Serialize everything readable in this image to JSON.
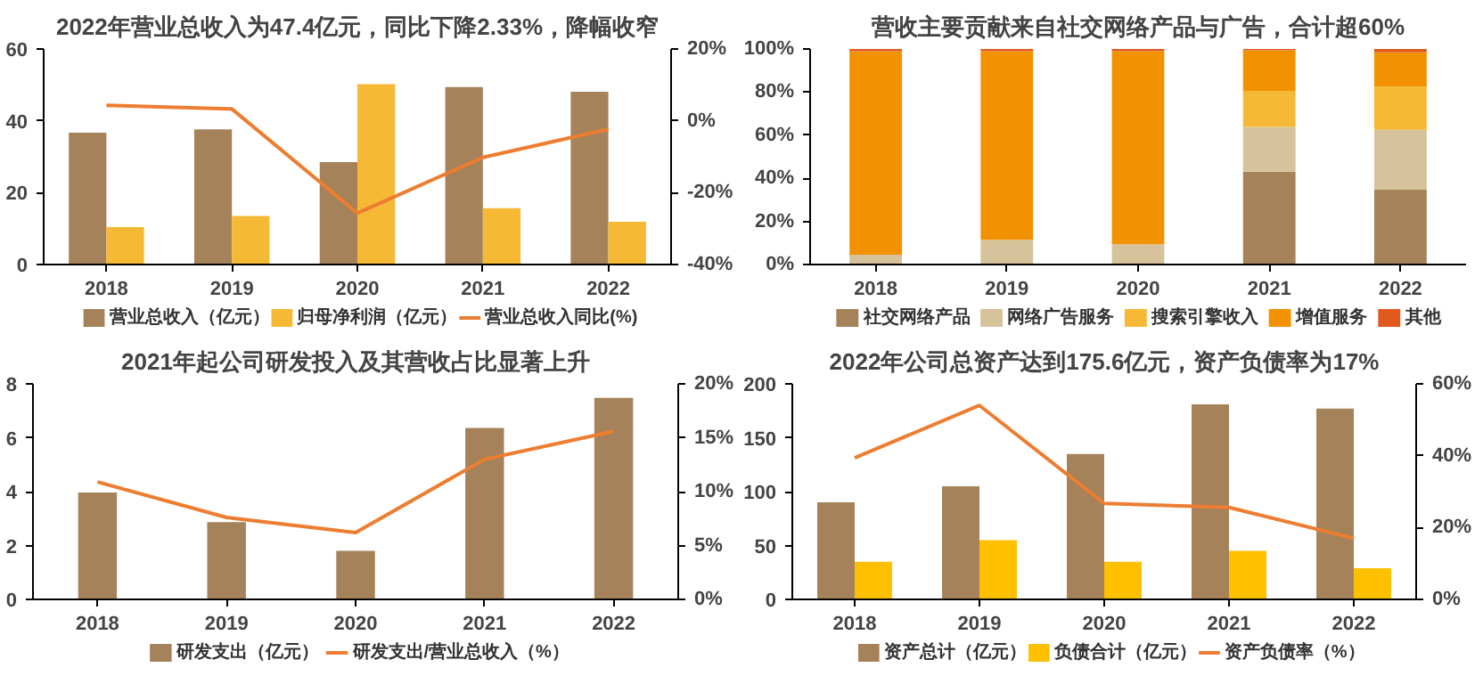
{
  "chart_data": [
    {
      "type": "bar",
      "title": "2022年营业总收入为47.4亿元，同比下降2.33%，降幅收窄",
      "categories": [
        "2018",
        "2019",
        "2020",
        "2021",
        "2022"
      ],
      "series": [
        {
          "name": "营业总收入（亿元）",
          "color": "#a5825a",
          "values": [
            36.7,
            37.6,
            28.5,
            49.4,
            48.1
          ]
        },
        {
          "name": "归母净利润（亿元）",
          "color": "#f5b935",
          "values": [
            10.4,
            13.5,
            50.2,
            15.7,
            11.9
          ]
        },
        {
          "name": "营业总收入同比(%)",
          "color": "#ed7d31",
          "type": "line",
          "axis": "y2",
          "values": [
            4.3,
            3.3,
            -25.7,
            -10.2,
            -2.3
          ]
        }
      ],
      "ylim": [
        0,
        60
      ],
      "yticks": [
        0,
        20,
        40,
        60
      ],
      "y2lim": [
        -40,
        20
      ],
      "y2ticks": [
        {
          "value": -40,
          "label": "-40%"
        },
        {
          "value": -20,
          "label": "-20%"
        },
        {
          "value": 0,
          "label": "0%"
        },
        {
          "value": 20,
          "label": "20%"
        }
      ],
      "legend": "bottom",
      "grid": false,
      "marker": "none",
      "line_style": "solid"
    },
    {
      "type": "bar",
      "title": "营收主要贡献来自社交网络产品与广告，合计超60%",
      "categories": [
        "2018",
        "2019",
        "2020",
        "2021",
        "2022"
      ],
      "stacked": true,
      "series": [
        {
          "name": "社交网络产品",
          "color": "#a5825a",
          "values": [
            0,
            0,
            0,
            43.1,
            34.7
          ]
        },
        {
          "name": "网络广告服务",
          "color": "#d6c39c",
          "values": [
            4.5,
            11.5,
            9.4,
            20.7,
            27.8
          ]
        },
        {
          "name": "搜索引擎收入",
          "color": "#f5b935",
          "values": [
            0,
            0,
            0,
            16.8,
            20.0
          ]
        },
        {
          "name": "增值服务",
          "color": "#f39200",
          "values": [
            94.5,
            87.5,
            89.6,
            18.8,
            15.9
          ]
        },
        {
          "name": "其他",
          "color": "#e05a1e",
          "values": [
            1,
            1,
            1,
            0.6,
            1.6
          ]
        }
      ],
      "ylim": [
        0,
        100
      ],
      "yticks": [
        {
          "value": 0,
          "label": "0%"
        },
        {
          "value": 20,
          "label": "20%"
        },
        {
          "value": 40,
          "label": "40%"
        },
        {
          "value": 60,
          "label": "60%"
        },
        {
          "value": 80,
          "label": "80%"
        },
        {
          "value": 100,
          "label": "100%"
        }
      ],
      "legend": "bottom",
      "grid": false
    },
    {
      "type": "bar",
      "title": "2021年起公司研发投入及其营收占比显著上升",
      "categories": [
        "2018",
        "2019",
        "2020",
        "2021",
        "2022"
      ],
      "series": [
        {
          "name": "研发支出（亿元）",
          "color": "#a5825a",
          "values": [
            3.97,
            2.87,
            1.8,
            6.36,
            7.48
          ]
        },
        {
          "name": "研发支出/营业总收入（%）",
          "color": "#ed7d31",
          "type": "line",
          "axis": "y2",
          "values": [
            10.9,
            7.6,
            6.2,
            13.0,
            15.6
          ]
        }
      ],
      "ylim": [
        0,
        8
      ],
      "yticks": [
        0,
        2,
        4,
        6,
        8
      ],
      "y2lim": [
        0,
        20
      ],
      "y2ticks": [
        {
          "value": 0,
          "label": "0%"
        },
        {
          "value": 5,
          "label": "5%"
        },
        {
          "value": 10,
          "label": "10%"
        },
        {
          "value": 15,
          "label": "15%"
        },
        {
          "value": 20,
          "label": "20%"
        }
      ],
      "legend": "bottom",
      "grid": false,
      "marker": "none",
      "line_style": "solid"
    },
    {
      "type": "bar",
      "title": "2022年公司总资产达到175.6亿元，资产负债率为17%",
      "categories": [
        "2018",
        "2019",
        "2020",
        "2021",
        "2022"
      ],
      "series": [
        {
          "name": "资产总计（亿元）",
          "color": "#a5825a",
          "values": [
            90,
            105,
            135,
            181,
            177
          ]
        },
        {
          "name": "负债合计（亿元）",
          "color": "#ffc000",
          "values": [
            35,
            55,
            35,
            45,
            29
          ]
        },
        {
          "name": "资产负债率（%）",
          "color": "#ed7d31",
          "type": "line",
          "axis": "y2",
          "values": [
            39.4,
            54,
            26.7,
            25.6,
            17
          ]
        }
      ],
      "ylim": [
        0,
        200
      ],
      "yticks": [
        0,
        50,
        100,
        150,
        200
      ],
      "y2lim": [
        0,
        60
      ],
      "y2ticks": [
        {
          "value": 0,
          "label": "0%"
        },
        {
          "value": 20,
          "label": "20%"
        },
        {
          "value": 40,
          "label": "40%"
        },
        {
          "value": 60,
          "label": "60%"
        }
      ],
      "legend": "bottom",
      "grid": false,
      "marker": "none",
      "line_style": "solid"
    }
  ]
}
